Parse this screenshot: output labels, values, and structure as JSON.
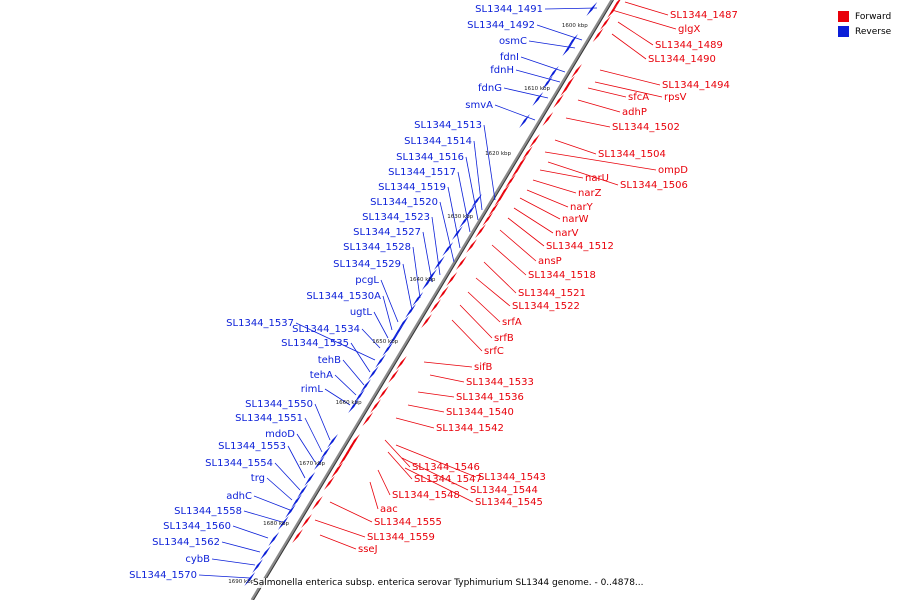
{
  "colors": {
    "forward": "#e8000a",
    "reverse": "#0b1fd8",
    "axis": "#8a8a8a"
  },
  "legend": [
    {
      "label": "Forward",
      "color": "#e8000a"
    },
    {
      "label": "Reverse",
      "color": "#0b1fd8"
    }
  ],
  "caption": "Salmonella enterica subsp. enterica serovar Typhimurium SL1344 genome. - 0..4878...",
  "scale_labels": [
    "1600 kbp",
    "1610 kbp",
    "1620 kbp",
    "1630 kbp",
    "1640 kbp",
    "1650 kbp",
    "1660 kbp",
    "1670 kbp",
    "1680 kbp",
    "1690 kbp"
  ],
  "forward_labels": [
    "SL1344_1487",
    "glgX",
    "SL1344_1489",
    "SL1344_1490",
    "SL1344_1494",
    "rpsV",
    "sfcA",
    "adhP",
    "SL1344_1502",
    "SL1344_1504",
    "ompD",
    "SL1344_1506",
    "narU",
    "narZ",
    "narY",
    "narW",
    "narV",
    "SL1344_1512",
    "ansP",
    "SL1344_1518",
    "SL1344_1521",
    "SL1344_1522",
    "srfA",
    "srfB",
    "srfC",
    "sifB",
    "SL1344_1533",
    "SL1344_1536",
    "SL1344_1540",
    "SL1344_1542",
    "SL1344_1546",
    "SL1344_1543",
    "SL1344_1547",
    "SL1344_1544",
    "SL1344_1548",
    "SL1344_1545",
    "aac",
    "SL1344_1555",
    "SL1344_1559",
    "sseJ"
  ],
  "reverse_labels": [
    "SL1344_1491",
    "SL1344_1492",
    "osmC",
    "fdnI",
    "fdnH",
    "fdnG",
    "smvA",
    "SL1344_1513",
    "SL1344_1514",
    "SL1344_1516",
    "SL1344_1517",
    "SL1344_1519",
    "SL1344_1520",
    "SL1344_1523",
    "SL1344_1527",
    "SL1344_1528",
    "SL1344_1529",
    "pcgL",
    "SL1344_1530A",
    "ugtL",
    "SL1344_1537",
    "SL1344_1534",
    "SL1344_1535",
    "tehB",
    "tehA",
    "rimL",
    "SL1344_1550",
    "SL1344_1551",
    "mdoD",
    "SL1344_1553",
    "SL1344_1554",
    "trg",
    "adhC",
    "SL1344_1558",
    "SL1344_1560",
    "SL1344_1562",
    "cybB",
    "SL1344_1570"
  ]
}
